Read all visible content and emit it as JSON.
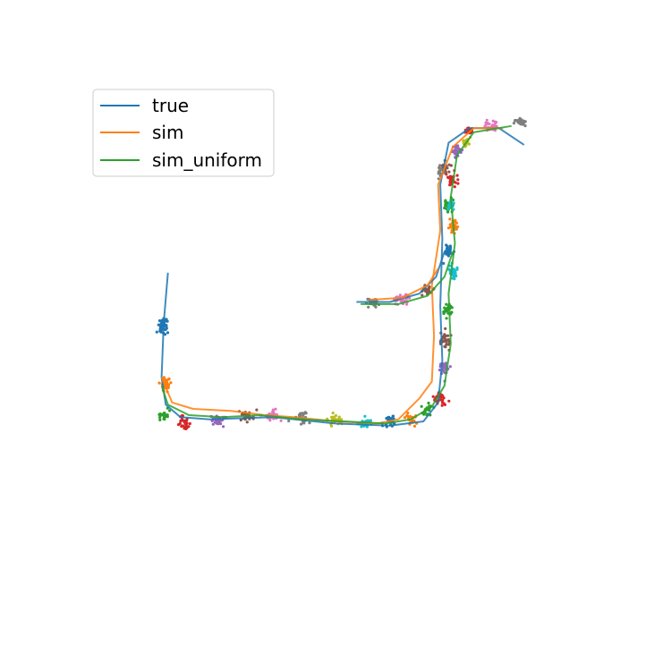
{
  "chart_data": {
    "type": "line",
    "title": "",
    "xlabel": "",
    "ylabel": "",
    "axes_visible": false,
    "xlim": [
      -1,
      11
    ],
    "ylim": [
      -1,
      11
    ],
    "grid": false,
    "legend": {
      "placement": "upper-left",
      "entries": [
        {
          "label": "true",
          "color": "#1f77b4"
        },
        {
          "label": "sim",
          "color": "#ff7f0e"
        },
        {
          "label": "sim_uniform",
          "color": "#2ca02c"
        }
      ]
    },
    "series": [
      {
        "name": "true",
        "color": "#1f77b4",
        "points": [
          [
            1.0,
            6.5
          ],
          [
            0.9,
            5.3
          ],
          [
            0.85,
            4.0
          ],
          [
            0.95,
            3.35
          ],
          [
            1.3,
            3.05
          ],
          [
            2.0,
            3.0
          ],
          [
            3.5,
            3.05
          ],
          [
            5.0,
            2.9
          ],
          [
            6.3,
            2.85
          ],
          [
            7.1,
            2.95
          ],
          [
            7.45,
            3.4
          ],
          [
            7.55,
            4.4
          ],
          [
            7.5,
            5.7
          ],
          [
            7.55,
            7.3
          ],
          [
            7.5,
            8.6
          ],
          [
            7.7,
            9.6
          ],
          [
            8.2,
            9.95
          ],
          [
            8.9,
            9.95
          ],
          [
            9.5,
            9.55
          ]
        ]
      },
      {
        "name": "sim",
        "color": "#ff7f0e",
        "points": [
          [
            0.85,
            4.0
          ],
          [
            1.1,
            3.4
          ],
          [
            1.6,
            3.25
          ],
          [
            2.5,
            3.2
          ],
          [
            3.3,
            3.1
          ],
          [
            4.0,
            3.05
          ],
          [
            5.0,
            2.95
          ],
          [
            6.0,
            2.9
          ],
          [
            6.5,
            3.0
          ],
          [
            7.0,
            3.5
          ],
          [
            7.3,
            3.9
          ],
          [
            7.35,
            5.0
          ],
          [
            7.3,
            6.2
          ],
          [
            7.5,
            7.5
          ],
          [
            7.45,
            8.6
          ],
          [
            7.8,
            9.5
          ],
          [
            8.3,
            9.95
          ],
          [
            9.0,
            9.95
          ]
        ]
      },
      {
        "name": "sim_uniform",
        "color": "#2ca02c",
        "points": [
          [
            0.85,
            3.8
          ],
          [
            1.0,
            3.35
          ],
          [
            1.5,
            3.1
          ],
          [
            2.3,
            3.05
          ],
          [
            3.2,
            3.1
          ],
          [
            4.2,
            3.0
          ],
          [
            5.2,
            2.95
          ],
          [
            6.2,
            2.9
          ],
          [
            6.8,
            3.0
          ],
          [
            7.3,
            3.3
          ],
          [
            7.6,
            3.8
          ],
          [
            7.75,
            4.8
          ],
          [
            7.7,
            6.0
          ],
          [
            7.85,
            7.2
          ],
          [
            7.75,
            8.3
          ],
          [
            7.9,
            9.3
          ],
          [
            8.3,
            9.85
          ],
          [
            9.2,
            10.0
          ]
        ]
      },
      {
        "name": "",
        "color": "#1f77b4",
        "points": [
          [
            5.5,
            5.8
          ],
          [
            6.3,
            5.8
          ],
          [
            7.0,
            6.0
          ],
          [
            7.4,
            6.4
          ],
          [
            7.6,
            7.0
          ]
        ]
      },
      {
        "name": "",
        "color": "#2ca02c",
        "points": [
          [
            5.6,
            5.75
          ],
          [
            6.5,
            5.75
          ],
          [
            7.2,
            5.95
          ],
          [
            7.6,
            6.4
          ],
          [
            7.8,
            7.0
          ]
        ]
      },
      {
        "name": "",
        "color": "#ff7f0e",
        "points": [
          [
            5.8,
            5.85
          ],
          [
            6.6,
            5.9
          ],
          [
            7.2,
            6.2
          ],
          [
            7.45,
            6.6
          ]
        ]
      }
    ],
    "scatter_clusters": [
      {
        "color": "#1f77b4",
        "center": [
          0.9,
          5.2
        ],
        "spread": [
          0.3,
          0.5
        ],
        "count": 40
      },
      {
        "color": "#ff7f0e",
        "center": [
          0.95,
          3.8
        ],
        "spread": [
          0.25,
          0.35
        ],
        "count": 30
      },
      {
        "color": "#2ca02c",
        "center": [
          0.95,
          3.1
        ],
        "spread": [
          0.3,
          0.3
        ],
        "count": 25
      },
      {
        "color": "#d62728",
        "center": [
          1.4,
          2.9
        ],
        "spread": [
          0.35,
          0.35
        ],
        "count": 30
      },
      {
        "color": "#9467bd",
        "center": [
          2.2,
          3.0
        ],
        "spread": [
          0.4,
          0.3
        ],
        "count": 30
      },
      {
        "color": "#8c564b",
        "center": [
          2.9,
          3.05
        ],
        "spread": [
          0.4,
          0.3
        ],
        "count": 30
      },
      {
        "color": "#e377c2",
        "center": [
          3.5,
          3.1
        ],
        "spread": [
          0.45,
          0.3
        ],
        "count": 30
      },
      {
        "color": "#7f7f7f",
        "center": [
          4.2,
          3.05
        ],
        "spread": [
          0.45,
          0.3
        ],
        "count": 30
      },
      {
        "color": "#bcbd22",
        "center": [
          5.0,
          3.0
        ],
        "spread": [
          0.4,
          0.3
        ],
        "count": 30
      },
      {
        "color": "#17becf",
        "center": [
          5.7,
          2.9
        ],
        "spread": [
          0.35,
          0.3
        ],
        "count": 30
      },
      {
        "color": "#1f77b4",
        "center": [
          6.3,
          2.95
        ],
        "spread": [
          0.35,
          0.3
        ],
        "count": 30
      },
      {
        "color": "#ff7f0e",
        "center": [
          6.8,
          3.0
        ],
        "spread": [
          0.3,
          0.3
        ],
        "count": 25
      },
      {
        "color": "#2ca02c",
        "center": [
          7.2,
          3.2
        ],
        "spread": [
          0.3,
          0.3
        ],
        "count": 25
      },
      {
        "color": "#d62728",
        "center": [
          7.5,
          3.5
        ],
        "spread": [
          0.3,
          0.35
        ],
        "count": 30
      },
      {
        "color": "#9467bd",
        "center": [
          7.6,
          4.2
        ],
        "spread": [
          0.3,
          0.4
        ],
        "count": 30
      },
      {
        "color": "#8c564b",
        "center": [
          7.6,
          4.9
        ],
        "spread": [
          0.3,
          0.4
        ],
        "count": 30
      },
      {
        "color": "#7f7f7f",
        "center": [
          5.9,
          5.8
        ],
        "spread": [
          0.3,
          0.22
        ],
        "count": 30
      },
      {
        "color": "#e377c2",
        "center": [
          6.6,
          5.85
        ],
        "spread": [
          0.4,
          0.22
        ],
        "count": 40
      },
      {
        "color": "#8c564b",
        "center": [
          7.2,
          6.1
        ],
        "spread": [
          0.3,
          0.25
        ],
        "count": 25
      },
      {
        "color": "#2ca02c",
        "center": [
          7.7,
          5.6
        ],
        "spread": [
          0.25,
          0.35
        ],
        "count": 30
      },
      {
        "color": "#17becf",
        "center": [
          7.8,
          6.5
        ],
        "spread": [
          0.25,
          0.35
        ],
        "count": 30
      },
      {
        "color": "#1f77b4",
        "center": [
          7.7,
          7.0
        ],
        "spread": [
          0.25,
          0.35
        ],
        "count": 30
      },
      {
        "color": "#ff7f0e",
        "center": [
          7.8,
          7.6
        ],
        "spread": [
          0.25,
          0.35
        ],
        "count": 30
      },
      {
        "color": "#2ca02c",
        "center": [
          7.7,
          8.1
        ],
        "spread": [
          0.25,
          0.35
        ],
        "count": 30
      },
      {
        "color": "#17becf",
        "center": [
          7.75,
          8.1
        ],
        "spread": [
          0.2,
          0.3
        ],
        "count": 20
      },
      {
        "color": "#d62728",
        "center": [
          7.8,
          8.7
        ],
        "spread": [
          0.25,
          0.35
        ],
        "count": 30
      },
      {
        "color": "#8c564b",
        "center": [
          7.6,
          9.0
        ],
        "spread": [
          0.25,
          0.3
        ],
        "count": 25
      },
      {
        "color": "#7f7f7f",
        "center": [
          7.5,
          8.9
        ],
        "spread": [
          0.2,
          0.3
        ],
        "count": 15
      },
      {
        "color": "#9467bd",
        "center": [
          7.9,
          9.4
        ],
        "spread": [
          0.25,
          0.3
        ],
        "count": 25
      },
      {
        "color": "#bcbd22",
        "center": [
          8.1,
          9.6
        ],
        "spread": [
          0.25,
          0.25
        ],
        "count": 20
      },
      {
        "color": "#d62728",
        "center": [
          8.2,
          9.9
        ],
        "spread": [
          0.25,
          0.25
        ],
        "count": 25
      },
      {
        "color": "#e377c2",
        "center": [
          8.7,
          10.0
        ],
        "spread": [
          0.35,
          0.2
        ],
        "count": 30
      },
      {
        "color": "#7f7f7f",
        "center": [
          9.4,
          10.1
        ],
        "spread": [
          0.3,
          0.2
        ],
        "count": 30
      }
    ]
  }
}
